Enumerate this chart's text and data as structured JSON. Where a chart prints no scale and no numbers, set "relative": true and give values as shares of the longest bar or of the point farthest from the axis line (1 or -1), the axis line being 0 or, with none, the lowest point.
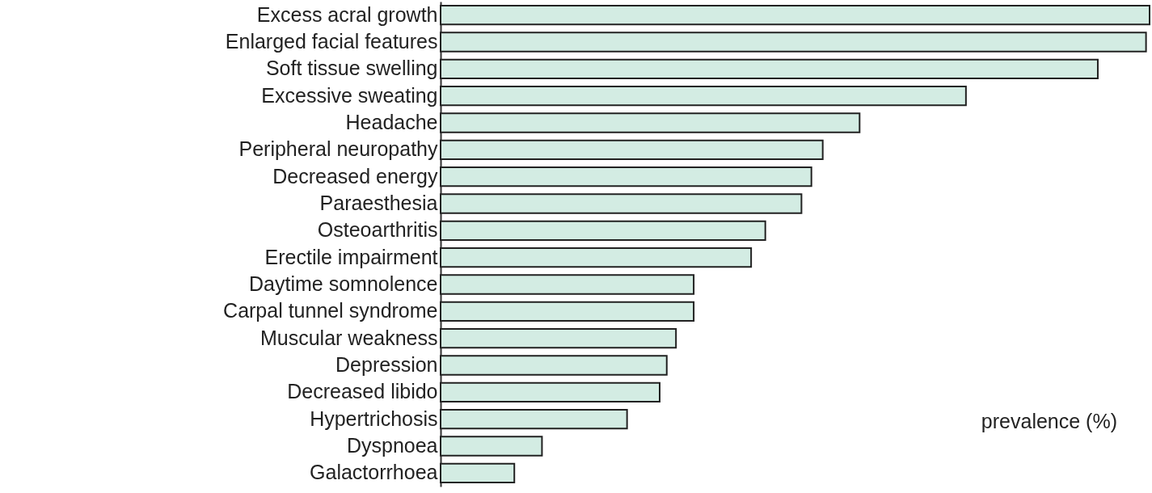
{
  "chart_data": {
    "type": "bar",
    "orientation": "horizontal",
    "relative": true,
    "xlabel": "prevalence (%)",
    "color": "#d3ece3",
    "categories": [
      "Excess acral growth",
      "Enlarged facial features",
      "Soft tissue swelling",
      "Excessive sweating",
      "Headache",
      "Peripheral neuropathy",
      "Decreased energy",
      "Paraesthesia",
      "Osteoarthritis",
      "Erectile impairment",
      "Daytime somnolence",
      "Carpal tunnel syndrome",
      "Muscular weakness",
      "Depression",
      "Decreased libido",
      "Hypertrichosis",
      "Dyspnoea",
      "Galactorrhoea"
    ],
    "values": [
      1.0,
      0.995,
      0.927,
      0.741,
      0.591,
      0.539,
      0.523,
      0.509,
      0.458,
      0.438,
      0.357,
      0.357,
      0.332,
      0.319,
      0.309,
      0.263,
      0.143,
      0.104
    ]
  }
}
